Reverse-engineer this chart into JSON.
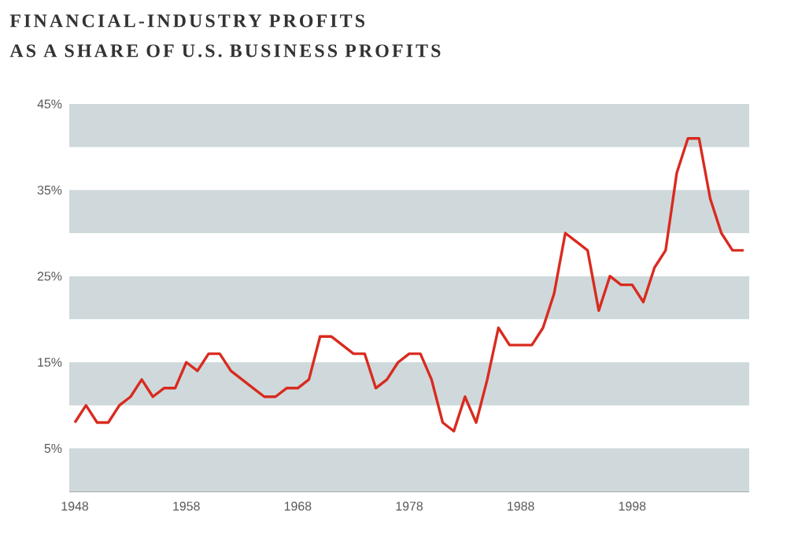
{
  "chart_data": {
    "type": "line",
    "title": "FINANCIAL-INDUSTRY PROFITS",
    "subtitle": "AS A SHARE OF U.S. BUSINESS PROFITS",
    "x": [
      1948,
      1949,
      1950,
      1951,
      1952,
      1953,
      1954,
      1955,
      1956,
      1957,
      1958,
      1959,
      1960,
      1961,
      1962,
      1963,
      1964,
      1965,
      1966,
      1967,
      1968,
      1969,
      1970,
      1971,
      1972,
      1973,
      1974,
      1975,
      1976,
      1977,
      1978,
      1979,
      1980,
      1981,
      1982,
      1983,
      1984,
      1985,
      1986,
      1987,
      1988,
      1989,
      1990,
      1991,
      1992,
      1993,
      1994,
      1995,
      1996,
      1997,
      1998,
      1999,
      2000,
      2001,
      2002,
      2003,
      2004,
      2005,
      2006,
      2007,
      2008
    ],
    "series": [
      {
        "color": "#d92b1f",
        "values": [
          8,
          10,
          8,
          8,
          10,
          11,
          13,
          11,
          12,
          12,
          15,
          14,
          16,
          16,
          14,
          13,
          12,
          11,
          11,
          12,
          12,
          13,
          18,
          18,
          17,
          16,
          16,
          12,
          13,
          15,
          16,
          16,
          13,
          8,
          7,
          11,
          8,
          13,
          19,
          17,
          17,
          17,
          19,
          23,
          30,
          29,
          28,
          21,
          25,
          24,
          24,
          22,
          26,
          28,
          37,
          41,
          41,
          34,
          30,
          28,
          28
        ]
      }
    ],
    "xlim": [
      1947.5,
      2008.5
    ],
    "ylim": [
      0,
      45
    ],
    "xticks": [
      1948,
      1958,
      1968,
      1978,
      1988,
      1998
    ],
    "yticks": [
      {
        "value": 5,
        "label": "5%"
      },
      {
        "value": 15,
        "label": "15%"
      },
      {
        "value": 25,
        "label": "25%"
      },
      {
        "value": 35,
        "label": "35%"
      },
      {
        "value": 45,
        "label": "45%"
      }
    ],
    "bands": [
      {
        "axis": "y",
        "from": 0,
        "to": 5,
        "color": "#cfd9db"
      },
      {
        "axis": "y",
        "from": 10,
        "to": 15,
        "color": "#cfd9db"
      },
      {
        "axis": "y",
        "from": 20,
        "to": 25,
        "color": "#cfd9db"
      },
      {
        "axis": "y",
        "from": 30,
        "to": 35,
        "color": "#cfd9db"
      },
      {
        "axis": "y",
        "from": 40,
        "to": 45,
        "color": "#cfd9db"
      }
    ]
  }
}
